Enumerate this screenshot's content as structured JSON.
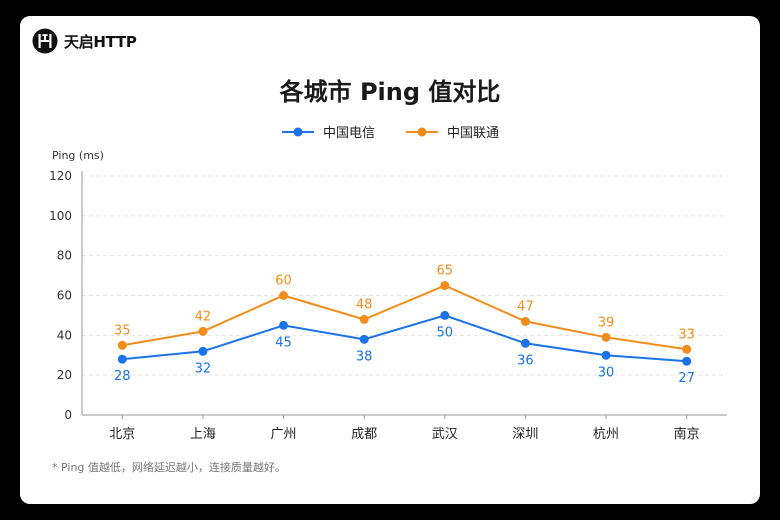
{
  "brand": {
    "name": "天启HTTP",
    "logo_icon": "th-monogram-logo"
  },
  "footnote": "* Ping 值越低，网络延迟越小，连接质量越好。",
  "colors": {
    "telecom": "#1a73e8",
    "unicom": "#f28c1b",
    "grid": "#e5e5e5",
    "axis": "#999999"
  },
  "chart_data": {
    "type": "line",
    "title": "各城市 Ping 值对比",
    "xlabel": "",
    "ylabel": "Ping (ms)",
    "categories": [
      "北京",
      "上海",
      "广州",
      "成都",
      "武汉",
      "深圳",
      "杭州",
      "南京"
    ],
    "ylim": [
      0,
      120
    ],
    "yticks": [
      0,
      20,
      40,
      60,
      80,
      100,
      120
    ],
    "grid": true,
    "legend_position": "top",
    "series": [
      {
        "name": "中国电信",
        "color": "#1a73e8",
        "values": [
          28,
          32,
          45,
          38,
          50,
          36,
          30,
          27
        ],
        "label_position": "below"
      },
      {
        "name": "中国联通",
        "color": "#f28c1b",
        "values": [
          35,
          42,
          60,
          48,
          65,
          47,
          39,
          33
        ],
        "label_position": "above"
      }
    ]
  }
}
